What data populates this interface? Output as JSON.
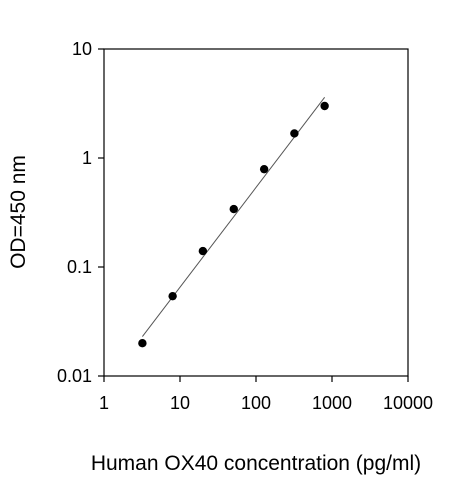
{
  "chart_data": {
    "type": "scatter",
    "xlabel": "Human OX40 concentration (pg/ml)",
    "ylabel": "OD=450 nm",
    "xscale": "log",
    "yscale": "log",
    "xlim": [
      1,
      10000
    ],
    "ylim": [
      0.01,
      10
    ],
    "x_tick_labels": [
      "1",
      "10",
      "100",
      "1000",
      "10000"
    ],
    "y_tick_labels": [
      "0.01",
      "0.1",
      "1",
      "10"
    ],
    "grid": false,
    "legend": "none",
    "point_color": "#000000",
    "points": [
      {
        "x": 3.2,
        "y": 0.02
      },
      {
        "x": 8,
        "y": 0.054
      },
      {
        "x": 20,
        "y": 0.14
      },
      {
        "x": 51,
        "y": 0.34
      },
      {
        "x": 128,
        "y": 0.79
      },
      {
        "x": 320,
        "y": 1.68
      },
      {
        "x": 800,
        "y": 3.0
      }
    ],
    "fit_line": {
      "x": [
        3.2,
        800
      ],
      "y": [
        0.023,
        3.6
      ]
    }
  }
}
